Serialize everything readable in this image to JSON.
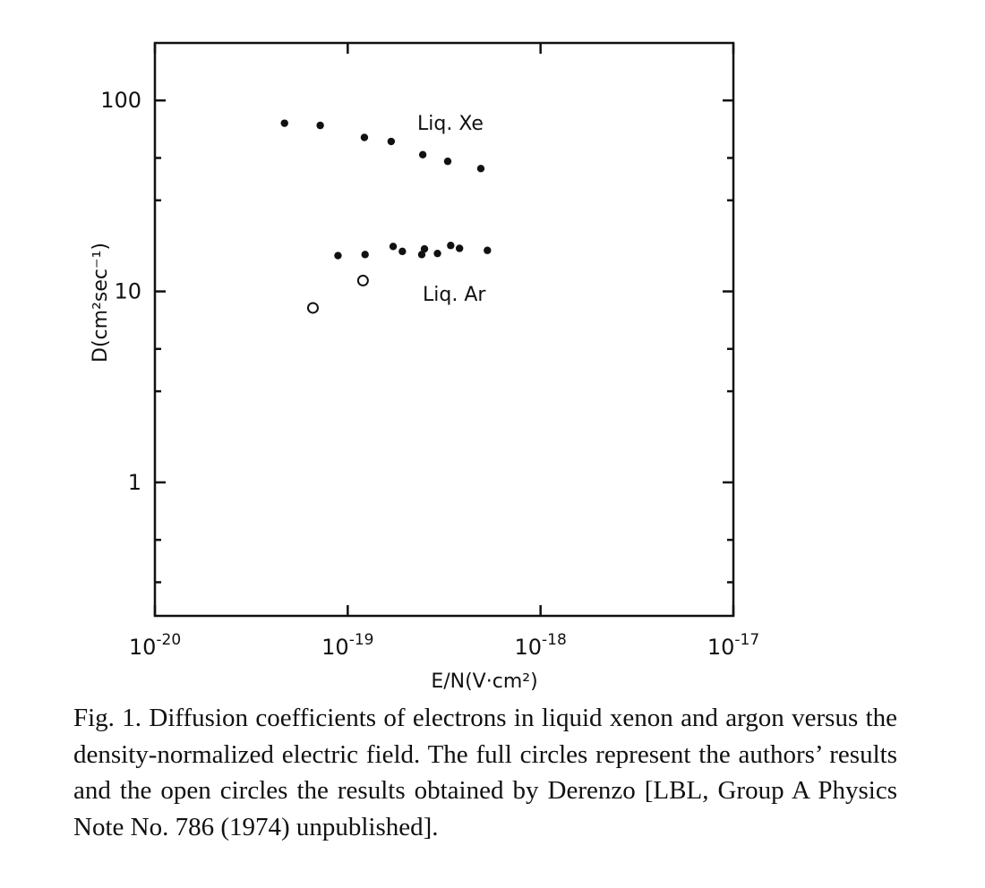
{
  "chart_data": {
    "type": "scatter",
    "title": "",
    "xlabel": "E/N(V·cm²)",
    "ylabel": "D(cm²sec⁻¹)",
    "xscale": "log",
    "yscale": "log",
    "xlim": [
      1e-20,
      1e-17
    ],
    "ylim": [
      0.2,
      200
    ],
    "grid": false,
    "legend": "none",
    "x_ticks": [
      {
        "value": 1e-20,
        "mantissa": "10",
        "exponent": "-20"
      },
      {
        "value": 1e-19,
        "mantissa": "10",
        "exponent": "-19"
      },
      {
        "value": 1e-18,
        "mantissa": "10",
        "exponent": "-18"
      },
      {
        "value": 1e-17,
        "mantissa": "10",
        "exponent": "-17"
      }
    ],
    "y_ticks": [
      {
        "value": 100,
        "label": "100"
      },
      {
        "value": 10,
        "label": "10"
      },
      {
        "value": 1,
        "label": "1"
      }
    ],
    "series": [
      {
        "marker": "filled",
        "annotation": "Liq. Xe",
        "points": [
          [
            4.7e-20,
            76
          ],
          [
            7.2e-20,
            74
          ],
          [
            1.22e-19,
            64
          ],
          [
            1.68e-19,
            61
          ],
          [
            2.45e-19,
            52
          ],
          [
            3.3e-19,
            48
          ],
          [
            4.9e-19,
            44
          ]
        ]
      },
      {
        "marker": "filled",
        "annotation": "Liq. Ar",
        "points": [
          [
            8.9e-20,
            15.4
          ],
          [
            1.23e-19,
            15.6
          ],
          [
            1.72e-19,
            17.2
          ],
          [
            1.92e-19,
            16.2
          ],
          [
            2.42e-19,
            15.6
          ],
          [
            2.5e-19,
            16.7
          ],
          [
            2.92e-19,
            15.8
          ],
          [
            3.42e-19,
            17.4
          ],
          [
            3.8e-19,
            16.8
          ],
          [
            5.3e-19,
            16.4
          ]
        ]
      },
      {
        "marker": "open",
        "points": [
          [
            6.6e-20,
            8.2
          ],
          [
            1.2e-19,
            11.4
          ]
        ]
      }
    ]
  },
  "caption": "Fig. 1. Diffusion coefficients of electrons in liquid xenon and argon versus the density-normalized electric field. The full circles represent the authors’ results and the open circles the results obtained by Derenzo [LBL, Group A Physics Note No. 786 (1974) unpublished].",
  "colors": {
    "ink": "#111111",
    "paper": "#ffffff"
  }
}
